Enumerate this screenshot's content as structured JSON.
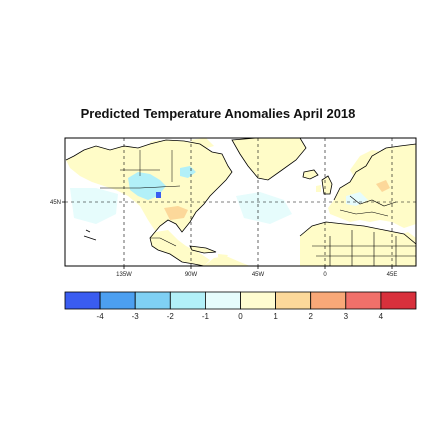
{
  "title": "Predicted Temperature Anomalies April 2018",
  "map": {
    "lon_labels": [
      "135W",
      "90W",
      "45W",
      "0",
      "45E"
    ],
    "lat_labels": [
      "45N"
    ],
    "land_color": "#fffcc8",
    "ocean_color": "#ffffff"
  },
  "colorbar": {
    "colors": [
      "#3a5cf0",
      "#4c9ff0",
      "#7fd0f4",
      "#b2f0f8",
      "#e6fcfc",
      "#fffcd0",
      "#fcd89a",
      "#f8a878",
      "#f0706a",
      "#d8303c"
    ],
    "labels": [
      "-4",
      "-3",
      "-2",
      "-1",
      "0",
      "1",
      "2",
      "3",
      "4"
    ]
  }
}
